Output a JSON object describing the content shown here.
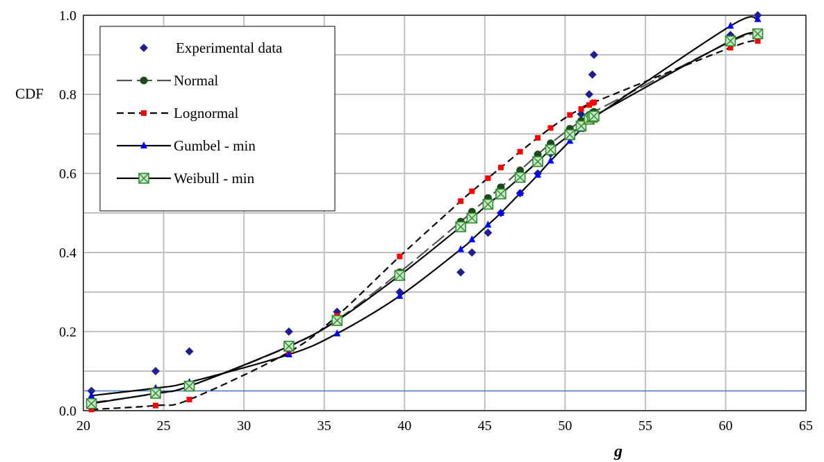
{
  "chart_data": {
    "type": "line",
    "xlabel": "g",
    "ylabel": "CDF",
    "xlim": [
      20,
      65
    ],
    "ylim": [
      0,
      1
    ],
    "x_ticks": [
      "20",
      "25",
      "30",
      "35",
      "40",
      "45",
      "50",
      "55",
      "60",
      "65"
    ],
    "y_ticks": [
      "0.0",
      "0.2",
      "0.4",
      "0.6",
      "0.8",
      "1.0"
    ],
    "grid": true,
    "legend_position": "top-left",
    "reference_line": {
      "y": 0.05,
      "color": "#4472c4"
    },
    "series": [
      {
        "name": "Experimental data",
        "style": "markers",
        "marker": "diamond",
        "color": "#1f1f8f",
        "points": [
          [
            20.5,
            0.05
          ],
          [
            24.5,
            0.1
          ],
          [
            26.6,
            0.15
          ],
          [
            32.8,
            0.2
          ],
          [
            35.8,
            0.25
          ],
          [
            39.7,
            0.3
          ],
          [
            43.5,
            0.35
          ],
          [
            44.2,
            0.4
          ],
          [
            45.2,
            0.45
          ],
          [
            46.0,
            0.5
          ],
          [
            47.2,
            0.55
          ],
          [
            48.3,
            0.6
          ],
          [
            49.1,
            0.65
          ],
          [
            50.3,
            0.7
          ],
          [
            51.0,
            0.75
          ],
          [
            51.5,
            0.8
          ],
          [
            51.7,
            0.85
          ],
          [
            51.8,
            0.9
          ],
          [
            60.3,
            0.95
          ],
          [
            62.0,
            1.0
          ]
        ]
      },
      {
        "name": "Normal",
        "style": "long-dash",
        "marker": "circle",
        "color": "#555555",
        "marker_color": "#1a4d1a",
        "points": [
          [
            20.5,
            0.02
          ],
          [
            24.5,
            0.043
          ],
          [
            26.6,
            0.062
          ],
          [
            32.8,
            0.162
          ],
          [
            35.8,
            0.23
          ],
          [
            39.7,
            0.35
          ],
          [
            43.5,
            0.478
          ],
          [
            44.2,
            0.503
          ],
          [
            45.2,
            0.538
          ],
          [
            46.0,
            0.565
          ],
          [
            47.2,
            0.608
          ],
          [
            48.3,
            0.648
          ],
          [
            49.1,
            0.676
          ],
          [
            50.3,
            0.713
          ],
          [
            51.0,
            0.733
          ],
          [
            51.5,
            0.748
          ],
          [
            51.7,
            0.753
          ],
          [
            51.8,
            0.756
          ],
          [
            60.3,
            0.933
          ],
          [
            62.0,
            0.95
          ]
        ]
      },
      {
        "name": "Lognormal",
        "style": "dash",
        "marker": "square",
        "color": "#000000",
        "marker_color": "#ff0000",
        "points": [
          [
            20.5,
            0.003
          ],
          [
            24.5,
            0.013
          ],
          [
            26.6,
            0.028
          ],
          [
            32.8,
            0.148
          ],
          [
            35.8,
            0.24
          ],
          [
            39.7,
            0.39
          ],
          [
            43.5,
            0.53
          ],
          [
            44.2,
            0.555
          ],
          [
            45.2,
            0.588
          ],
          [
            46.0,
            0.615
          ],
          [
            47.2,
            0.655
          ],
          [
            48.3,
            0.69
          ],
          [
            49.1,
            0.715
          ],
          [
            50.3,
            0.748
          ],
          [
            51.0,
            0.763
          ],
          [
            51.5,
            0.773
          ],
          [
            51.7,
            0.778
          ],
          [
            51.8,
            0.78
          ],
          [
            60.3,
            0.918
          ],
          [
            62.0,
            0.935
          ]
        ]
      },
      {
        "name": "Gumbel - min",
        "style": "solid",
        "marker": "triangle",
        "color": "#000000",
        "marker_color": "#0000ff",
        "points": [
          [
            20.5,
            0.038
          ],
          [
            24.5,
            0.057
          ],
          [
            26.6,
            0.072
          ],
          [
            32.8,
            0.142
          ],
          [
            35.8,
            0.195
          ],
          [
            39.7,
            0.29
          ],
          [
            43.5,
            0.408
          ],
          [
            44.2,
            0.433
          ],
          [
            45.2,
            0.47
          ],
          [
            46.0,
            0.5
          ],
          [
            47.2,
            0.55
          ],
          [
            48.3,
            0.596
          ],
          [
            49.1,
            0.632
          ],
          [
            50.3,
            0.682
          ],
          [
            51.0,
            0.712
          ],
          [
            51.5,
            0.732
          ],
          [
            51.7,
            0.738
          ],
          [
            51.8,
            0.742
          ],
          [
            60.3,
            0.973
          ],
          [
            62.0,
            0.99
          ]
        ]
      },
      {
        "name": "Weibull - min",
        "style": "solid",
        "marker": "boxed-x",
        "color": "#000000",
        "marker_color": "#2e8b2e",
        "points": [
          [
            20.5,
            0.018
          ],
          [
            24.5,
            0.044
          ],
          [
            26.6,
            0.062
          ],
          [
            32.8,
            0.163
          ],
          [
            35.8,
            0.228
          ],
          [
            39.7,
            0.342
          ],
          [
            43.5,
            0.465
          ],
          [
            44.2,
            0.487
          ],
          [
            45.2,
            0.522
          ],
          [
            46.0,
            0.548
          ],
          [
            47.2,
            0.59
          ],
          [
            48.3,
            0.63
          ],
          [
            49.1,
            0.66
          ],
          [
            50.3,
            0.698
          ],
          [
            51.0,
            0.72
          ],
          [
            51.5,
            0.737
          ],
          [
            51.7,
            0.742
          ],
          [
            51.8,
            0.745
          ],
          [
            60.3,
            0.935
          ],
          [
            62.0,
            0.953
          ]
        ]
      }
    ]
  }
}
